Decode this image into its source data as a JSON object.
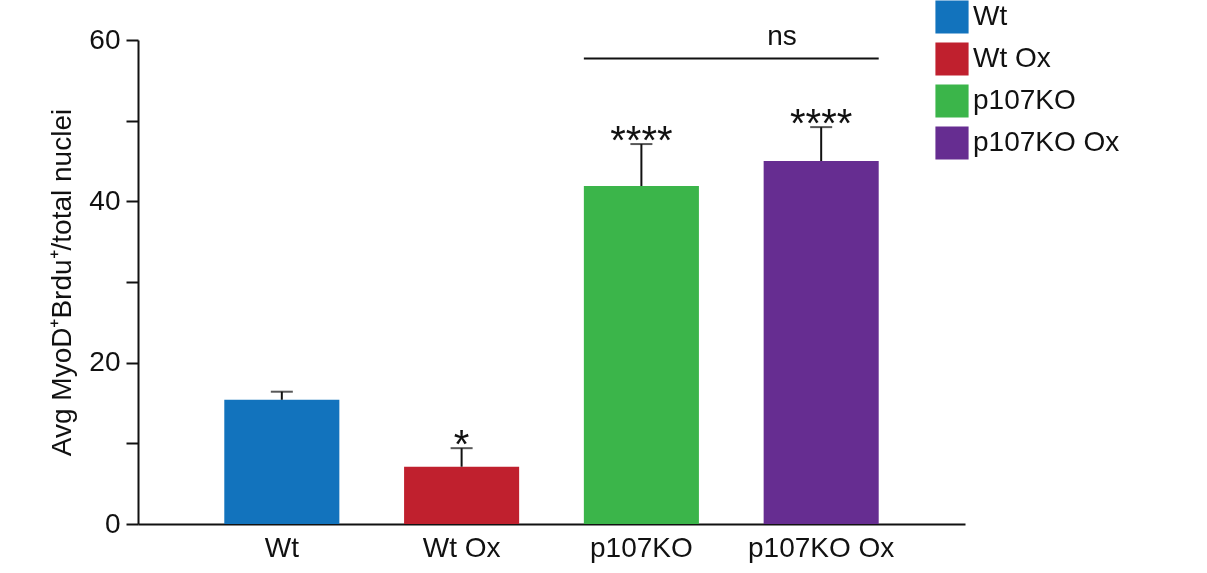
{
  "chart_data": {
    "type": "bar",
    "ylabel": "Avg MyoD⁺Brdu⁺/total nuclei",
    "categories": [
      "Wt",
      "Wt Ox",
      "p107KO",
      "p107KO Ox"
    ],
    "series": [
      {
        "name": "Wt",
        "color": "#1273bd",
        "values": [
          15.4,
          null,
          null,
          null
        ],
        "errors": [
          [
            15.4,
            16.4
          ],
          null,
          null,
          null
        ]
      },
      {
        "name": "Wt Ox",
        "color": "#c0202e",
        "values": [
          null,
          7.1,
          null,
          null
        ],
        "errors": [
          null,
          [
            7.1,
            9.4
          ],
          null,
          null
        ]
      },
      {
        "name": "p107KO",
        "color": "#3bb54a",
        "values": [
          null,
          null,
          41.9,
          null
        ],
        "errors": [
          null,
          null,
          [
            41.9,
            47.1
          ],
          null
        ]
      },
      {
        "name": "p107KO Ox",
        "color": "#662d91",
        "values": [
          null,
          null,
          null,
          45.0
        ],
        "errors": [
          null,
          null,
          null,
          [
            45.0,
            49.2
          ]
        ]
      }
    ],
    "ylim": [
      0,
      60
    ],
    "yticks": [
      0,
      {
        "value": 10,
        "label": null
      },
      20,
      {
        "value": 30,
        "label": null
      },
      40,
      {
        "value": 50,
        "label": null
      },
      60
    ],
    "grid": false,
    "legend": "top right",
    "annotations": [
      "*",
      "****",
      "****",
      "ns"
    ]
  }
}
